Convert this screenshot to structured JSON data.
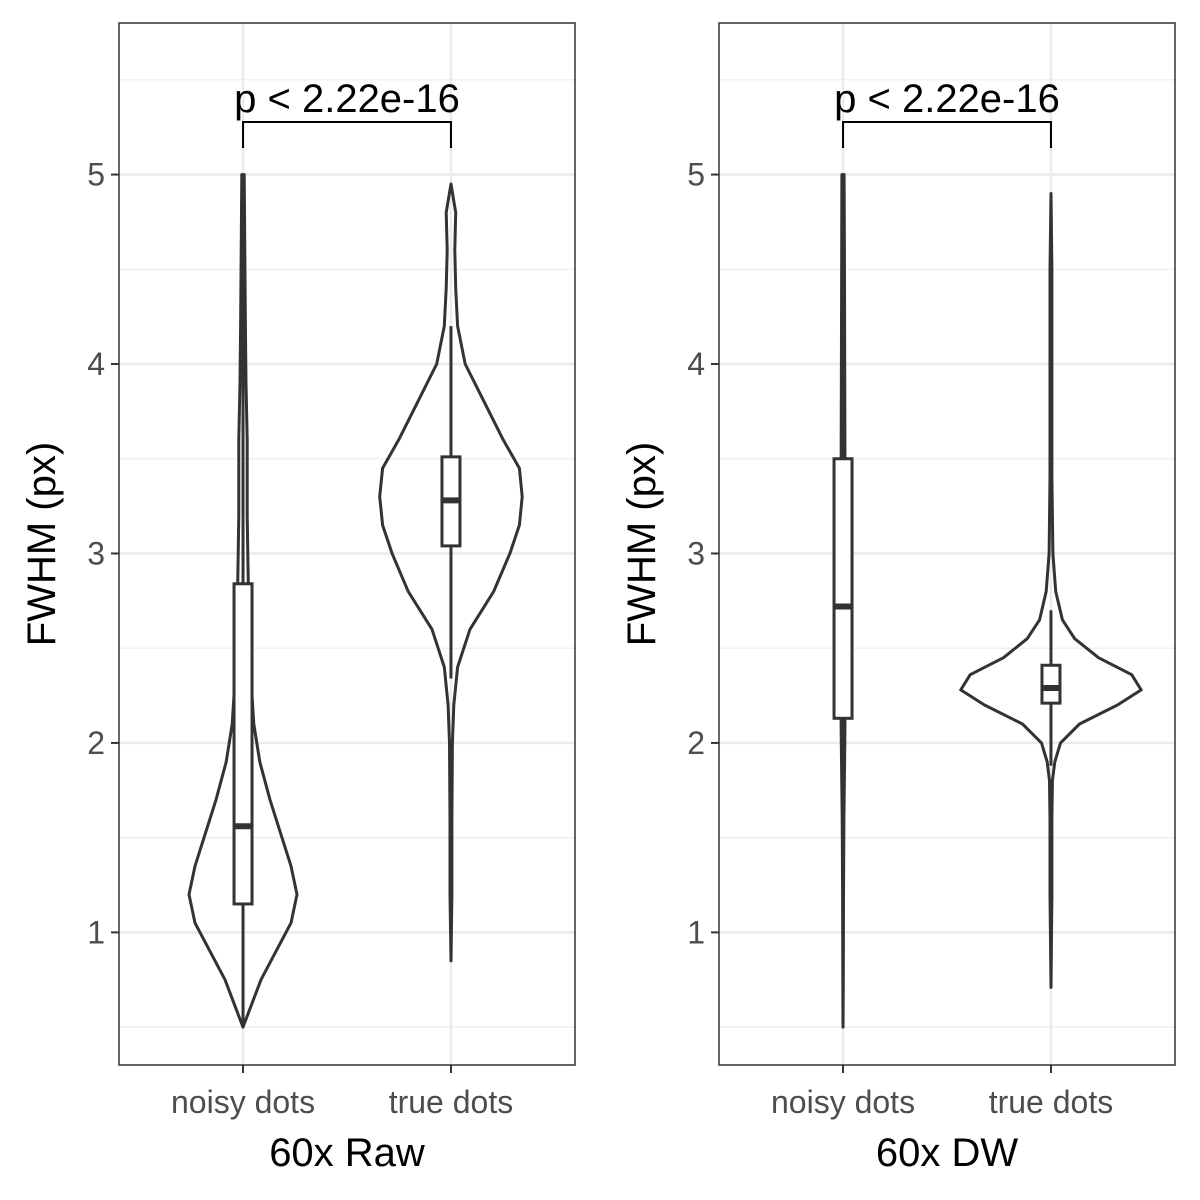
{
  "chart_data": [
    {
      "type": "violin",
      "xlabel": "60x Raw",
      "ylabel": "FWHM (px)",
      "ylim": [
        0.3,
        5.8
      ],
      "yticks": [
        1,
        2,
        3,
        4,
        5
      ],
      "ytick_labels": [
        "1",
        "2",
        "3",
        "4",
        "5"
      ],
      "categories": [
        "noisy dots",
        "true dots"
      ],
      "grid": true,
      "significance": {
        "label": "p < 2.22e-16",
        "between": [
          "noisy dots",
          "true dots"
        ]
      },
      "series": [
        {
          "category": "noisy dots",
          "min": 0.5,
          "max": 5.0,
          "q1": 1.15,
          "median": 1.56,
          "q3": 2.84,
          "whisker_low": 0.5,
          "whisker_high": 4.8,
          "density": [
            [
              0.5,
              0.0
            ],
            [
              0.6,
              0.12
            ],
            [
              0.75,
              0.3
            ],
            [
              0.9,
              0.55
            ],
            [
              1.05,
              0.8
            ],
            [
              1.2,
              0.9
            ],
            [
              1.35,
              0.8
            ],
            [
              1.5,
              0.65
            ],
            [
              1.7,
              0.45
            ],
            [
              1.9,
              0.28
            ],
            [
              2.1,
              0.18
            ],
            [
              2.4,
              0.12
            ],
            [
              2.8,
              0.09
            ],
            [
              3.2,
              0.07
            ],
            [
              3.6,
              0.07
            ],
            [
              3.9,
              0.05
            ],
            [
              4.2,
              0.04
            ],
            [
              4.6,
              0.03
            ],
            [
              5.0,
              0.02
            ]
          ]
        },
        {
          "category": "true dots",
          "min": 0.85,
          "max": 4.95,
          "q1": 3.04,
          "median": 3.28,
          "q3": 3.51,
          "whisker_low": 2.34,
          "whisker_high": 4.2,
          "density": [
            [
              0.85,
              0.0
            ],
            [
              1.2,
              0.01
            ],
            [
              1.6,
              0.01
            ],
            [
              2.0,
              0.015
            ],
            [
              2.2,
              0.03
            ],
            [
              2.4,
              0.07
            ],
            [
              2.6,
              0.2
            ],
            [
              2.8,
              0.45
            ],
            [
              3.0,
              0.62
            ],
            [
              3.15,
              0.72
            ],
            [
              3.3,
              0.75
            ],
            [
              3.45,
              0.72
            ],
            [
              3.6,
              0.55
            ],
            [
              3.8,
              0.35
            ],
            [
              4.0,
              0.15
            ],
            [
              4.2,
              0.07
            ],
            [
              4.4,
              0.05
            ],
            [
              4.6,
              0.04
            ],
            [
              4.8,
              0.05
            ],
            [
              4.95,
              0.0
            ]
          ]
        }
      ]
    },
    {
      "type": "violin",
      "xlabel": "60x DW",
      "ylabel": "FWHM (px)",
      "ylim": [
        0.3,
        5.8
      ],
      "yticks": [
        1,
        2,
        3,
        4,
        5
      ],
      "ytick_labels": [
        "1",
        "2",
        "3",
        "4",
        "5"
      ],
      "categories": [
        "noisy dots",
        "true dots"
      ],
      "grid": true,
      "significance": {
        "label": "p < 2.22e-16",
        "between": [
          "noisy dots",
          "true dots"
        ]
      },
      "series": [
        {
          "category": "noisy dots",
          "min": 0.5,
          "max": 5.0,
          "q1": 2.13,
          "median": 2.72,
          "q3": 3.5,
          "whisker_low": 0.5,
          "whisker_high": 5.0,
          "density": [
            [
              0.5,
              0.0
            ],
            [
              0.8,
              0.01
            ],
            [
              1.2,
              0.02
            ],
            [
              1.6,
              0.04
            ],
            [
              2.0,
              0.08
            ],
            [
              2.3,
              0.1
            ],
            [
              2.6,
              0.11
            ],
            [
              3.0,
              0.1
            ],
            [
              3.4,
              0.09
            ],
            [
              3.8,
              0.08
            ],
            [
              4.2,
              0.07
            ],
            [
              4.6,
              0.06
            ],
            [
              5.0,
              0.05
            ]
          ]
        },
        {
          "category": "true dots",
          "min": 0.71,
          "max": 4.9,
          "q1": 2.21,
          "median": 2.29,
          "q3": 2.41,
          "whisker_low": 1.88,
          "whisker_high": 2.7,
          "density": [
            [
              0.71,
              0.0
            ],
            [
              1.2,
              0.01
            ],
            [
              1.6,
              0.01
            ],
            [
              1.8,
              0.015
            ],
            [
              1.9,
              0.04
            ],
            [
              2.0,
              0.1
            ],
            [
              2.1,
              0.3
            ],
            [
              2.2,
              0.7
            ],
            [
              2.28,
              0.95
            ],
            [
              2.36,
              0.85
            ],
            [
              2.45,
              0.5
            ],
            [
              2.55,
              0.25
            ],
            [
              2.65,
              0.12
            ],
            [
              2.8,
              0.05
            ],
            [
              3.0,
              0.02
            ],
            [
              3.4,
              0.01
            ],
            [
              4.0,
              0.01
            ],
            [
              4.5,
              0.01
            ],
            [
              4.9,
              0.0
            ]
          ]
        }
      ]
    }
  ]
}
